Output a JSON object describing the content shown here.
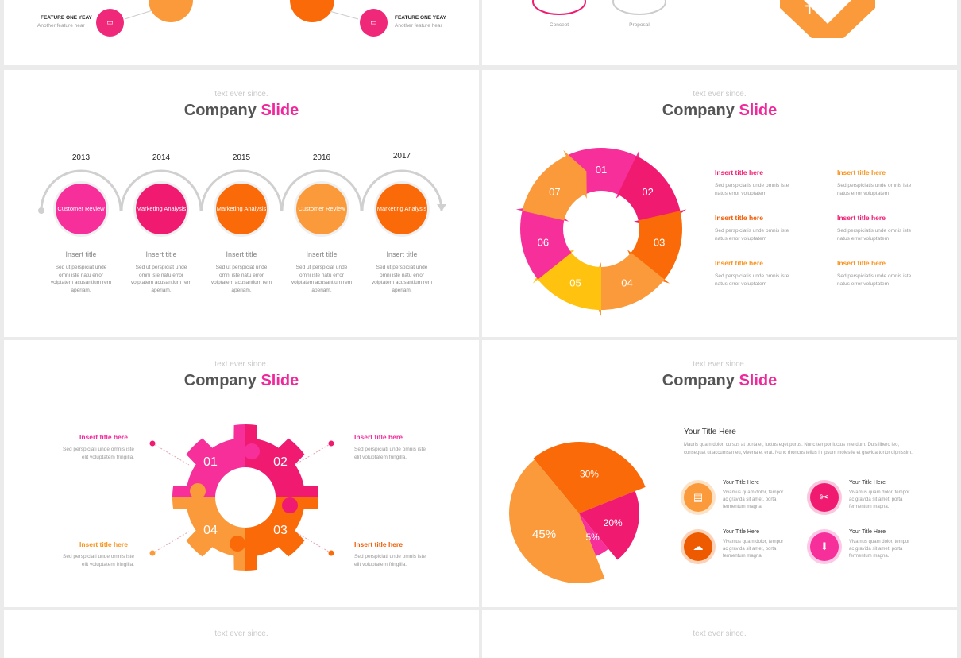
{
  "top_left": {
    "left_feature": {
      "title": "FEATURE ONE YEAY",
      "sub": "Another feature hear",
      "color": "#f0287a"
    },
    "right_feature": {
      "title": "FEATURE ONE YEAY",
      "sub": "Another feature hear",
      "color": "#f0287a"
    },
    "accent_orange": "#f7931e",
    "accent_dark": "#ee5a00"
  },
  "top_right": {
    "labels": [
      "Concept",
      "Proposal"
    ],
    "badge_letter": "T"
  },
  "slide_common": {
    "supertitle": "text ever since.",
    "title_main": "Company",
    "title_accent": "Slide"
  },
  "timeline": {
    "items": [
      {
        "year": "2013",
        "label": "Customer Review",
        "title": "Insert title",
        "desc": "Sed ut perspiciat unde omni iste natu error volptatem acusantium rem aperiam.",
        "color": "#f72f9b"
      },
      {
        "year": "2014",
        "label": "Marketing Analysis",
        "title": "Insert title",
        "desc": "Sed ut perspiciat unde omni iste natu error volptatem acusantium rem aperiam.",
        "color": "#f01a70"
      },
      {
        "year": "2015",
        "label": "Marketing Analysis",
        "title": "Insert title",
        "desc": "Sed ut perspiciat unde omni iste natu error volptatem acusantium rem aperiam.",
        "color": "#fb6a08"
      },
      {
        "year": "2016",
        "label": "Customer Review",
        "title": "Insert title",
        "desc": "Sed ut perspiciat unde omni iste natu error volptatem acusantium rem aperiam.",
        "color": "#fb9a3a"
      },
      {
        "year": "2017",
        "label": "Marketing Analysis",
        "title": "Insert title",
        "desc": "Sed ut perspiciat unde omni iste natu error volptatem acusantium rem aperiam.",
        "color": "#fb6a08"
      }
    ]
  },
  "cycle": {
    "segments": [
      "01",
      "02",
      "03",
      "04",
      "05",
      "06",
      "07"
    ],
    "colors": [
      "#f72f9b",
      "#f01a70",
      "#fb6a08",
      "#fb9a3a",
      "#ffc20e",
      "#f72f9b",
      "#fb9a3a"
    ],
    "entries": [
      {
        "title": "Insert title here",
        "desc": "Sed perspiciatis unde omnis iste natus error voluptatem",
        "color": "#f01a70"
      },
      {
        "title": "Insert title here",
        "desc": "Sed perspiciatis unde omnis iste natus error voluptatem",
        "color": "#f7931e"
      },
      {
        "title": "Insert title here",
        "desc": "Sed perspiciatis unde omnis iste natus error voluptatem",
        "color": "#ee5a00"
      },
      {
        "title": "Insert title here",
        "desc": "Sed perspiciatis unde omnis iste natus error voluptatem",
        "color": "#f01a70"
      },
      {
        "title": "Insert title here",
        "desc": "Sed perspiciatis unde omnis iste natus error voluptatem",
        "color": "#f7931e"
      },
      {
        "title": "Insert title here",
        "desc": "Sed perspiciatis unde omnis iste natus error voluptatem",
        "color": "#f7931e"
      }
    ]
  },
  "gear": {
    "segments": [
      "01",
      "02",
      "03",
      "04"
    ],
    "colors": [
      "#f72f9b",
      "#f01a70",
      "#fb6a08",
      "#fb9a3a"
    ],
    "entries": [
      {
        "title": "Insert title here",
        "desc": "Sed perspiciati unde omnis iste elit voluptatem fringilla.",
        "color": "#f01a70"
      },
      {
        "title": "Insert title here",
        "desc": "Sed perspiciati unde omnis iste elit voluptatem fringilla.",
        "color": "#f01a70"
      },
      {
        "title": "Insert title here",
        "desc": "Sed perspiciati unde omnis iste elit voluptatem fringilla.",
        "color": "#f7931e"
      },
      {
        "title": "Insert title here",
        "desc": "Sed perspiciati unde omnis iste elit voluptatem fringilla.",
        "color": "#ee5a00"
      }
    ]
  },
  "pie_slide": {
    "heading": "Your Title Here",
    "paragraph": "Mauris quam dolor, cursus at porta et, luctus eget purus. Nunc tempor luctus interdum. Duis libero leo, consequat ut accumsan eu, viverra et erat. Nunc rhoncus tellus in ipsum molestie et gravida tortor dignissim.",
    "features": [
      {
        "title": "Your Title Here",
        "desc": "Vivamus quam dolor, tempor ac gravida sit amet, porta fermentum magna.",
        "color": "#fb9a3a",
        "icon": "document-icon"
      },
      {
        "title": "Your Title Here",
        "desc": "Vivamus quam dolor, tempor ac gravida sit amet, porta fermentum magna.",
        "color": "#f01a70",
        "icon": "scissors-icon"
      },
      {
        "title": "Your Title Here",
        "desc": "Vivamus quam dolor, tempor ac gravida sit amet, porta fermentum magna.",
        "color": "#ee5a00",
        "icon": "chat-icon"
      },
      {
        "title": "Your Title Here",
        "desc": "Vivamus quam dolor, tempor ac gravida sit amet, porta fermentum magna.",
        "color": "#f72f9b",
        "icon": "cloud-download-icon"
      }
    ]
  },
  "chart_data": {
    "type": "pie",
    "categories": [
      "45%",
      "30%",
      "20%",
      "5%"
    ],
    "values": [
      45,
      30,
      20,
      5
    ],
    "colors": [
      "#fb9a3a",
      "#fb6a08",
      "#f01a70",
      "#f72f9b"
    ]
  },
  "bottom": {
    "supertitle": "text ever since."
  }
}
